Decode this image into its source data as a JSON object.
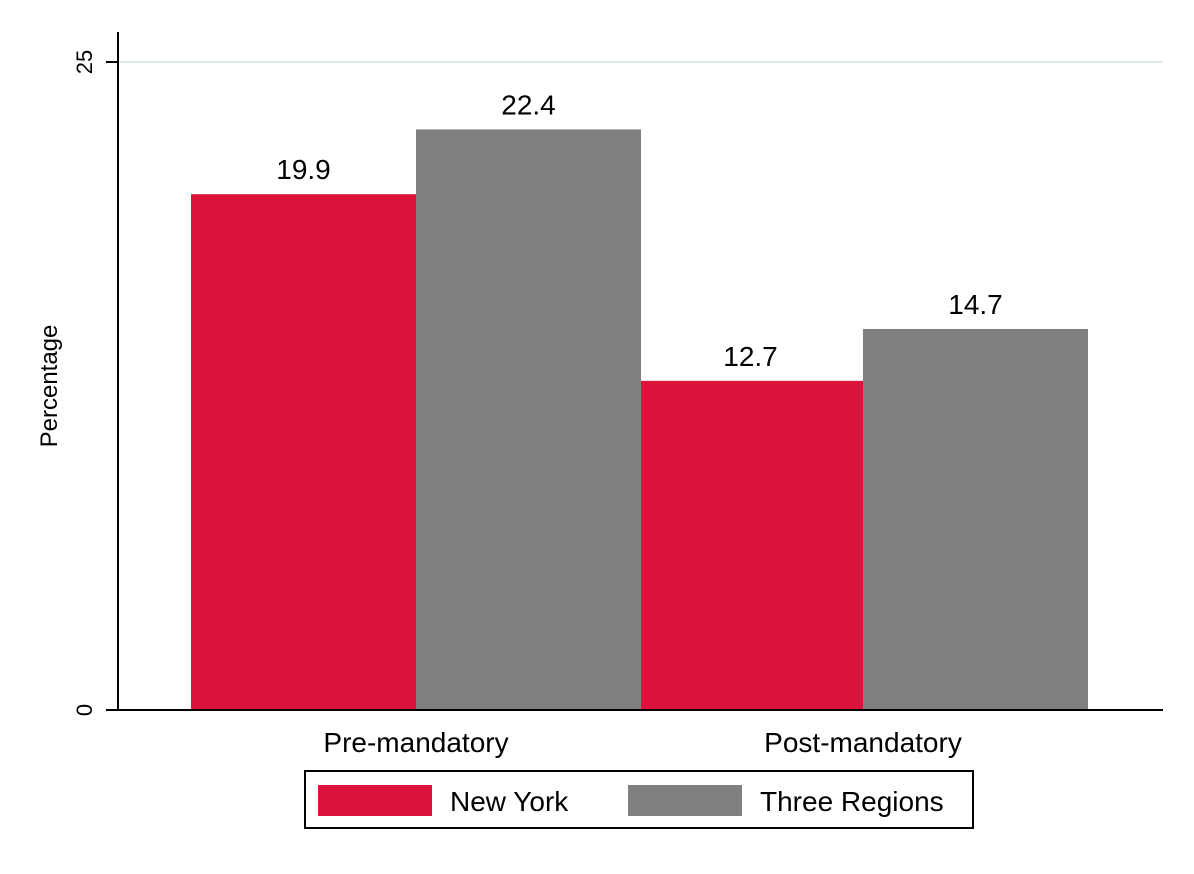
{
  "chart_data": {
    "type": "bar",
    "ylabel": "Percentage",
    "ylim": [
      0,
      25
    ],
    "yticks": [
      0,
      25
    ],
    "categories": [
      "Pre-mandatory",
      "Post-mandatory"
    ],
    "series": [
      {
        "name": "New York",
        "values": [
          19.9,
          12.7
        ],
        "color": "#DC143C"
      },
      {
        "name": "Three Regions",
        "values": [
          22.4,
          14.7
        ],
        "color": "#808080"
      }
    ],
    "value_labels": [
      [
        "19.9",
        "12.7"
      ],
      [
        "22.4",
        "14.7"
      ]
    ],
    "grid": true,
    "legend_position": "bottom"
  }
}
